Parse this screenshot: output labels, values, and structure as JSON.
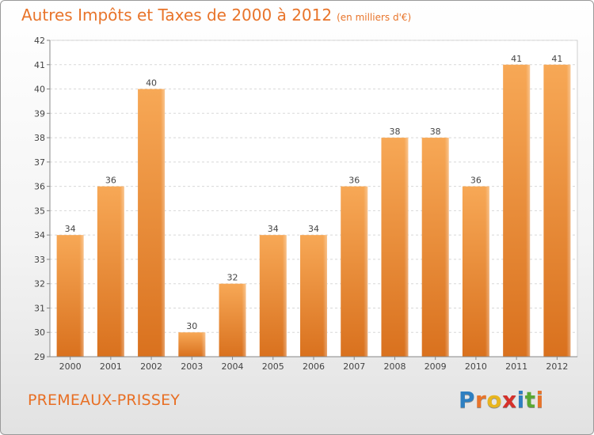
{
  "header": {
    "title": "Autres Impôts et Taxes de 2000 à 2012",
    "unit": "(en milliers d'€)"
  },
  "footer": {
    "commune": "PREMEAUX-PRISSEY",
    "logo_letters": [
      "P",
      "r",
      "o",
      "x",
      "i",
      "t",
      "i"
    ],
    "logo_colors": [
      "#2e7fc1",
      "#e8742a",
      "#e8b51e",
      "#d6302a",
      "#2e7fc1",
      "#5aa832",
      "#e8742a"
    ]
  },
  "chart_data": {
    "type": "bar",
    "title": "Autres Impôts et Taxes de 2000 à 2012",
    "xlabel": "",
    "ylabel": "",
    "categories": [
      "2000",
      "2001",
      "2002",
      "2003",
      "2004",
      "2005",
      "2006",
      "2007",
      "2008",
      "2009",
      "2010",
      "2011",
      "2012"
    ],
    "values": [
      34,
      36,
      40,
      30,
      32,
      34,
      34,
      36,
      38,
      38,
      36,
      41,
      41
    ],
    "ylim": [
      29,
      42
    ],
    "yticks": [
      29,
      30,
      31,
      32,
      33,
      34,
      35,
      36,
      37,
      38,
      39,
      40,
      41,
      42
    ],
    "grid": true,
    "bar_color_top": "#f7a856",
    "bar_color_bottom": "#d9711e"
  }
}
